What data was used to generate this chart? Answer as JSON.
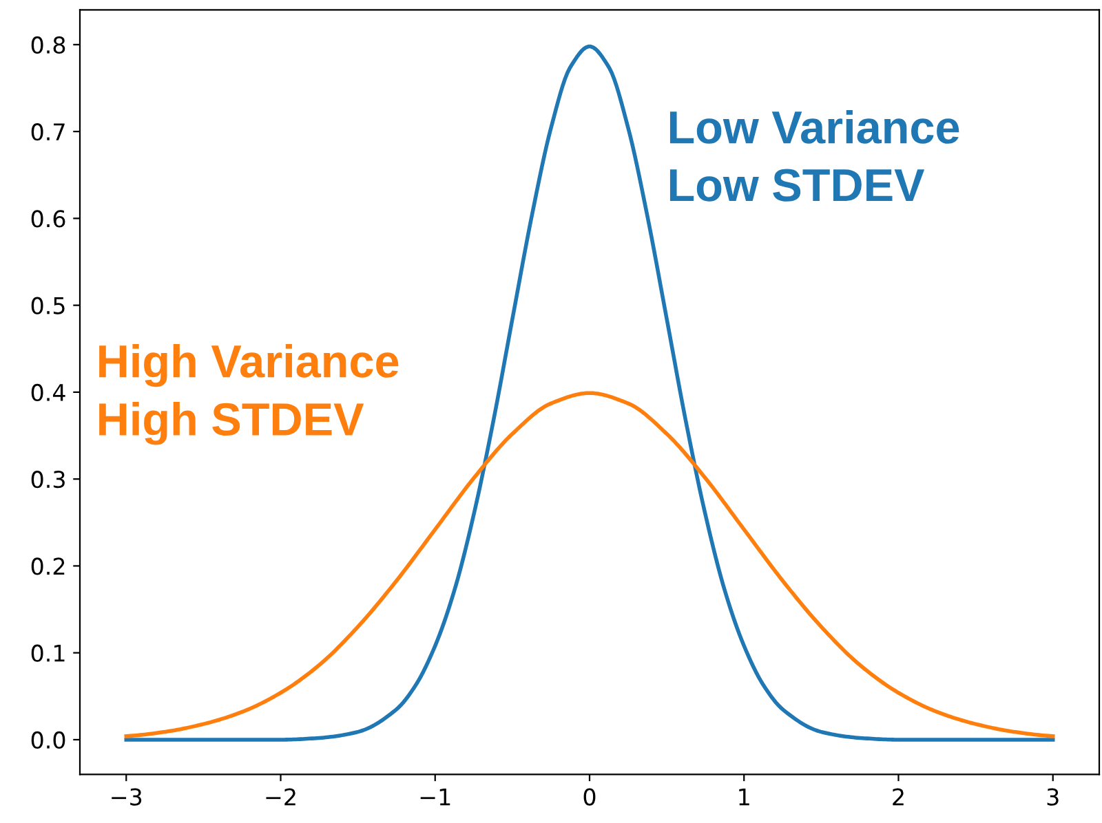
{
  "chart_data": {
    "type": "line",
    "xlim": [
      -3.3,
      3.3
    ],
    "ylim": [
      -0.04,
      0.84
    ],
    "xticks": [
      {
        "value": -3,
        "label": "−3"
      },
      {
        "value": -2,
        "label": "−2"
      },
      {
        "value": -1,
        "label": "−1"
      },
      0,
      1,
      2,
      3
    ],
    "yticks": [
      {
        "value": 0,
        "label": "0.0"
      },
      0.1,
      0.2,
      0.3,
      0.4,
      0.5,
      0.6,
      0.7,
      0.8
    ],
    "grid": false,
    "legend": false,
    "series": [
      {
        "name": "Low Variance\nLow STDEV",
        "color": "#1f77b4",
        "x": [
          -3,
          -2,
          -1.75,
          -1.5,
          -1.25,
          -1.125,
          -1,
          -0.875,
          -0.75,
          -0.625,
          -0.5,
          -0.375,
          -0.25,
          -0.125,
          0,
          0.125,
          0.25,
          0.375,
          0.5,
          0.625,
          0.75,
          0.875,
          1,
          1.125,
          1.25,
          1.5,
          1.75,
          2,
          3
        ],
        "values": [
          0,
          0,
          0.002,
          0.009,
          0.035,
          0.063,
          0.108,
          0.172,
          0.259,
          0.365,
          0.484,
          0.602,
          0.704,
          0.774,
          0.798,
          0.774,
          0.704,
          0.602,
          0.484,
          0.365,
          0.259,
          0.172,
          0.108,
          0.063,
          0.035,
          0.009,
          0.002,
          0,
          0
        ]
      },
      {
        "name": "High Variance\nHigh STDEV",
        "color": "#ff7f0e",
        "x": [
          -3,
          -2.75,
          -2.5,
          -2.25,
          -2,
          -1.75,
          -1.5,
          -1.25,
          -1,
          -0.75,
          -0.5,
          -0.25,
          0,
          0.25,
          0.5,
          0.75,
          1,
          1.25,
          1.5,
          1.75,
          2,
          2.25,
          2.5,
          2.75,
          3
        ],
        "values": [
          0.004,
          0.009,
          0.018,
          0.032,
          0.054,
          0.086,
          0.13,
          0.183,
          0.242,
          0.301,
          0.352,
          0.387,
          0.399,
          0.387,
          0.352,
          0.301,
          0.242,
          0.183,
          0.13,
          0.086,
          0.054,
          0.032,
          0.018,
          0.009,
          0.004
        ]
      }
    ]
  }
}
